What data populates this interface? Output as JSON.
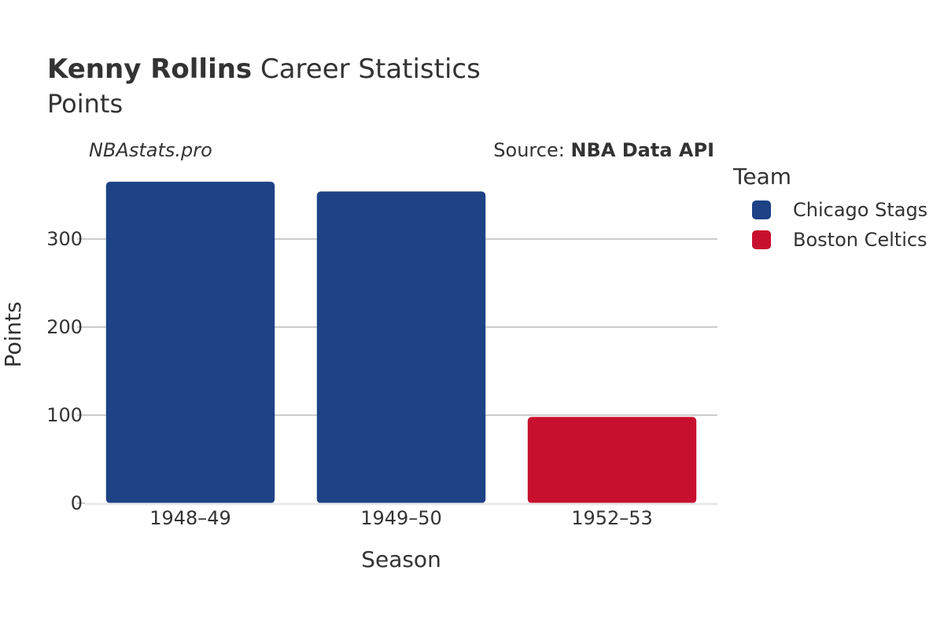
{
  "header": {
    "player": "Kenny Rollins",
    "title_rest": " Career Statistics",
    "subtitle": "Points",
    "site": "NBAstats.pro",
    "source_prefix": "Source: ",
    "source_name": "NBA Data API"
  },
  "legend": {
    "title": "Team",
    "items": [
      {
        "label": "Chicago Stags",
        "color": "#1d4286"
      },
      {
        "label": "Boston Celtics",
        "color": "#c8102e"
      }
    ]
  },
  "chart_data": {
    "type": "bar",
    "categories": [
      "1948–49",
      "1949–50",
      "1952–53"
    ],
    "values": [
      365,
      354,
      98
    ],
    "teams": [
      "Chicago Stags",
      "Chicago Stags",
      "Boston Celtics"
    ],
    "xlabel": "Season",
    "ylabel": "Points",
    "ylim": [
      0,
      383
    ],
    "yticks": [
      0,
      100,
      200,
      300
    ],
    "grid": true,
    "legend_placement": "right"
  }
}
